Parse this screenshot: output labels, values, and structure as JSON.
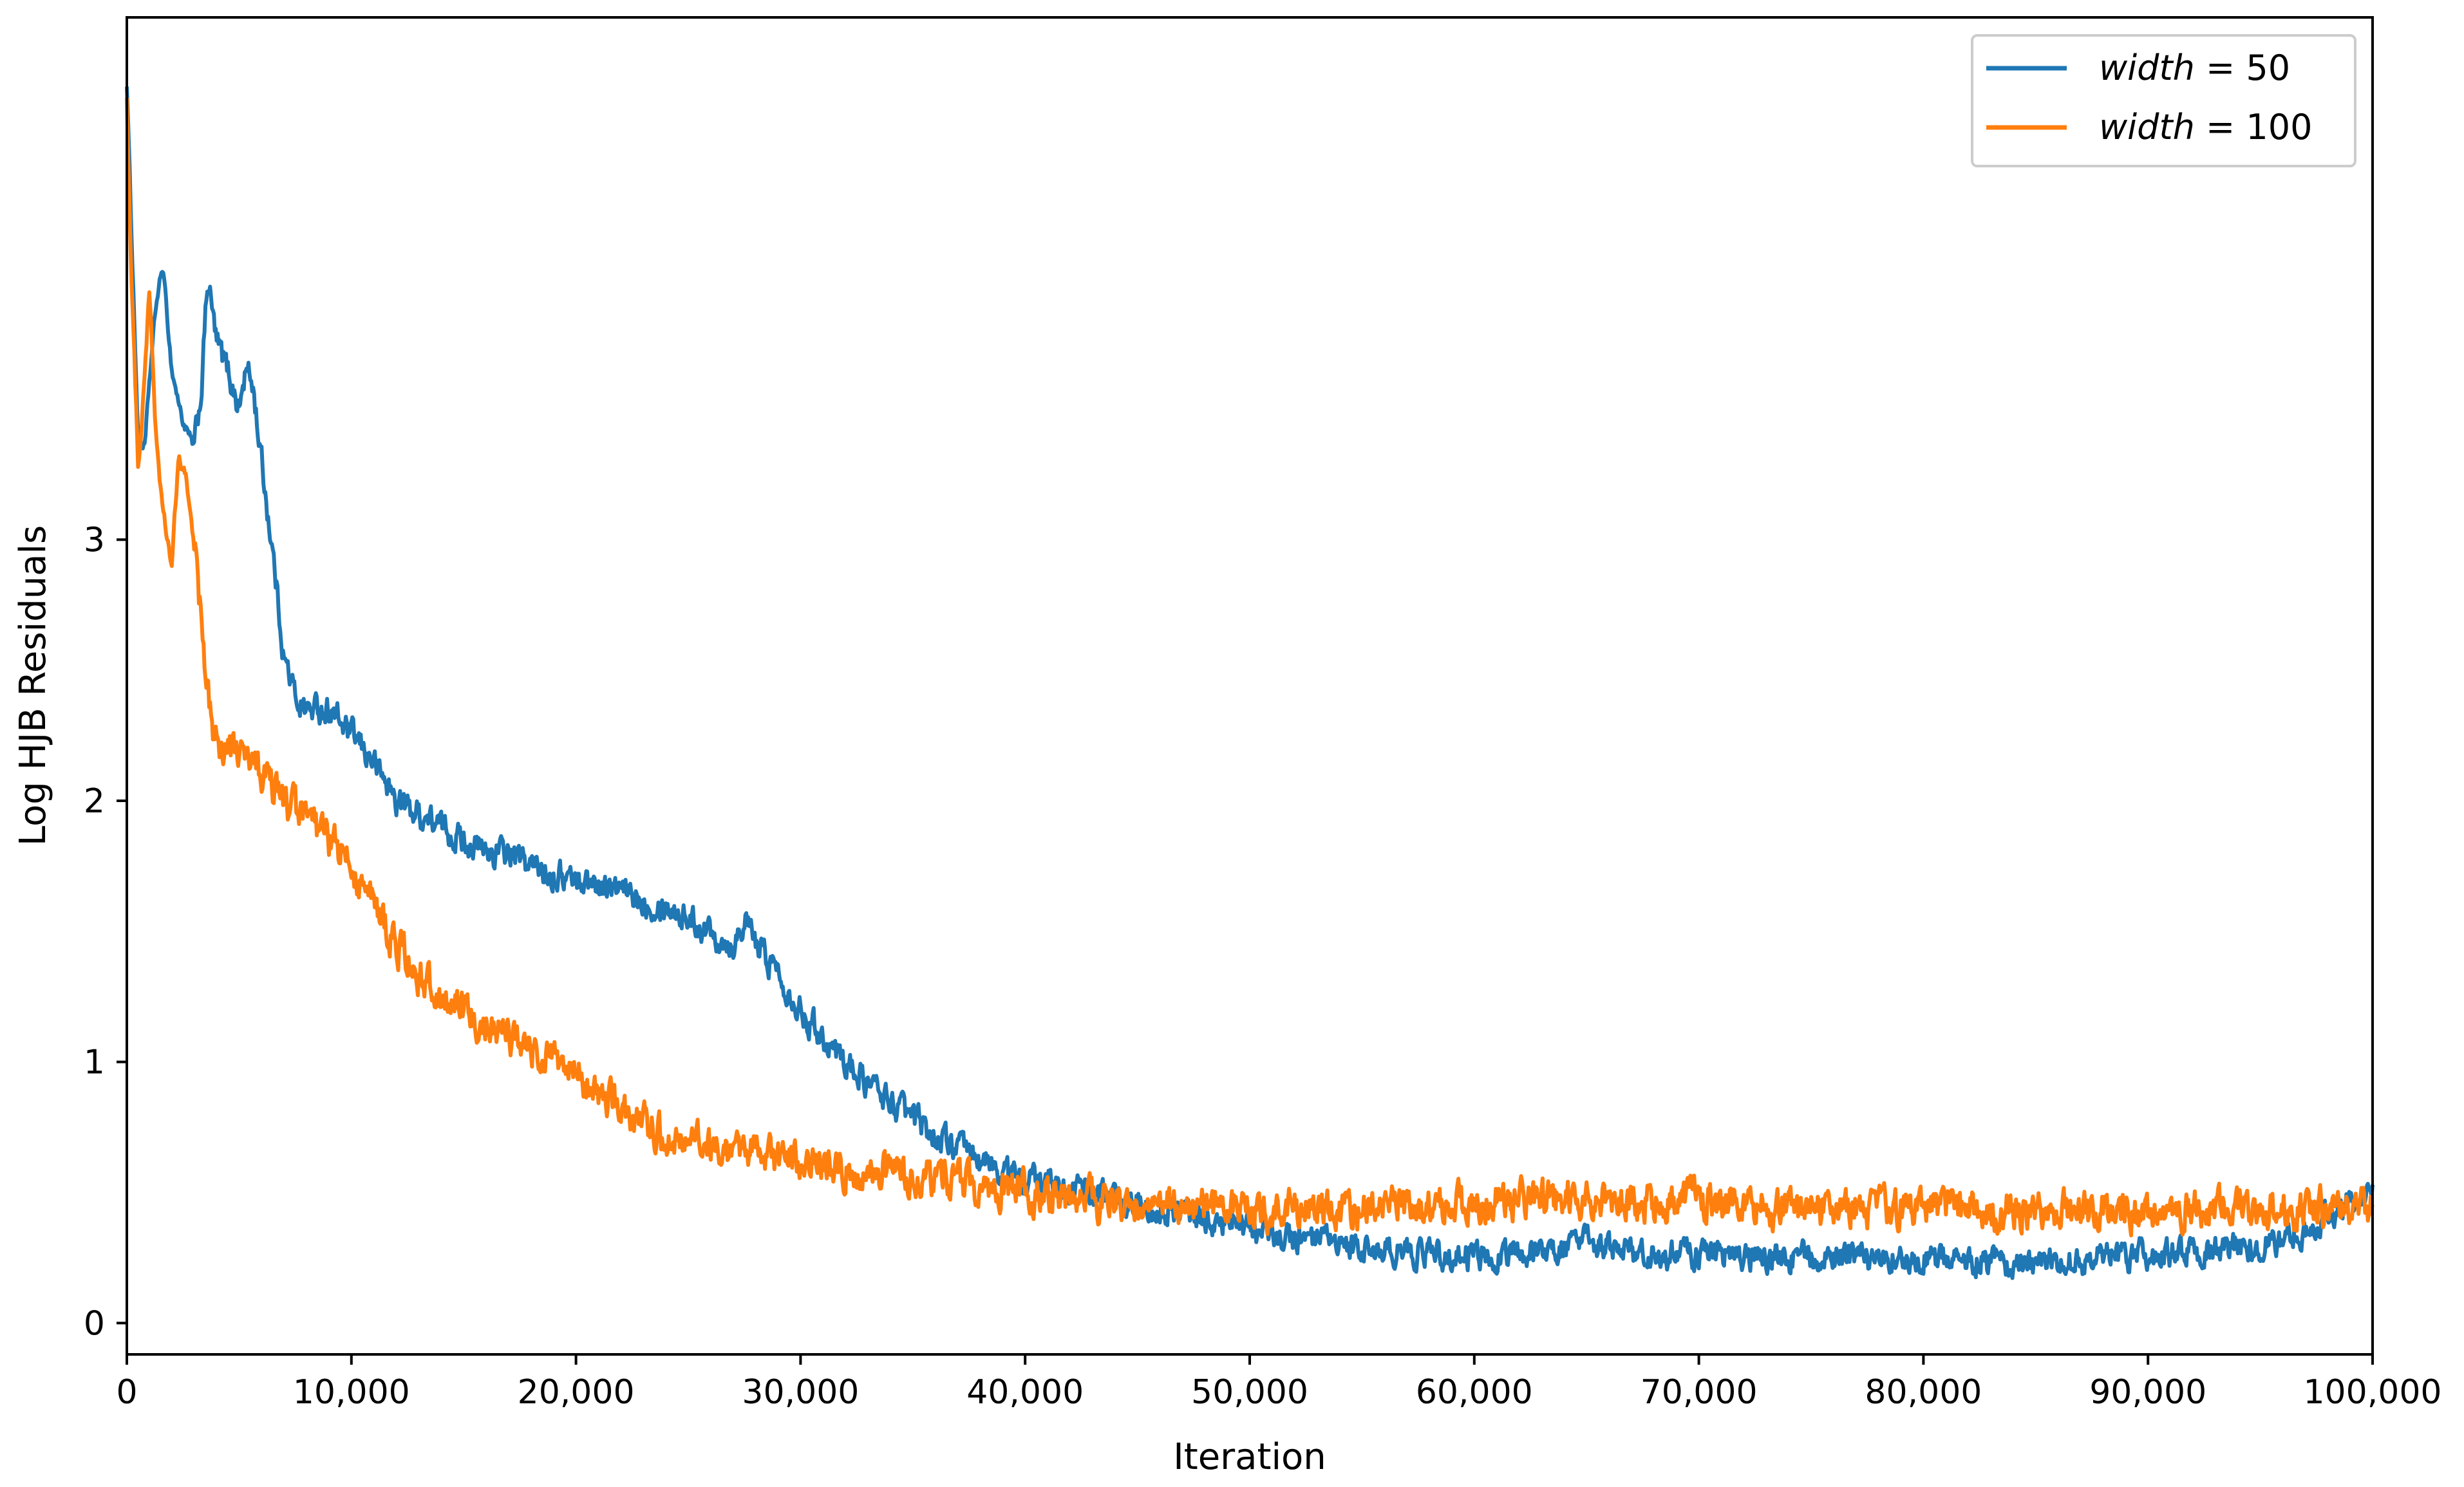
{
  "chart_data": {
    "type": "line",
    "xlabel": "Iteration",
    "ylabel": "Log HJB Residuals",
    "xlim": [
      0,
      100000
    ],
    "ylim": [
      -0.12,
      5.0
    ],
    "xticks": [
      0,
      10000,
      20000,
      30000,
      40000,
      50000,
      60000,
      70000,
      80000,
      90000,
      100000
    ],
    "xtick_labels": [
      "0",
      "10,000",
      "20,000",
      "30,000",
      "40,000",
      "50,000",
      "60,000",
      "70,000",
      "80,000",
      "90,000",
      "100,000"
    ],
    "yticks": [
      0,
      1,
      2,
      3
    ],
    "ytick_labels": [
      "0",
      "1",
      "2",
      "3"
    ],
    "grid": false,
    "legend_position": "top-right",
    "series": [
      {
        "name_italic": "width",
        "name_rest": " = 50",
        "color": "#1f77b4",
        "x": [
          0,
          200,
          500,
          800,
          1000,
          1300,
          1600,
          2000,
          2500,
          3000,
          3300,
          3600,
          4000,
          4500,
          5000,
          5300,
          5600,
          6000,
          6500,
          7000,
          7500,
          8000,
          9000,
          10000,
          11000,
          12000,
          13000,
          14000,
          15000,
          16000,
          17000,
          18000,
          19000,
          20000,
          21000,
          22000,
          23000,
          24000,
          25000,
          26000,
          27000,
          27500,
          28000,
          29000,
          30000,
          31000,
          32000,
          33000,
          34000,
          35000,
          36000,
          37000,
          38000,
          39000,
          40000,
          41000,
          42000,
          43000,
          44000,
          45000,
          46000,
          47000,
          48000,
          50000,
          52000,
          55000,
          58000,
          60000,
          62000,
          65000,
          68000,
          70000,
          72000,
          75000,
          78000,
          80000,
          82000,
          84000,
          85000,
          87000,
          90000,
          92000,
          95000,
          97000,
          98000,
          100000
        ],
        "y": [
          4.75,
          4.2,
          3.4,
          3.35,
          3.6,
          3.9,
          4.05,
          3.65,
          3.45,
          3.35,
          3.55,
          4.0,
          3.75,
          3.65,
          3.5,
          3.65,
          3.6,
          3.3,
          2.95,
          2.55,
          2.4,
          2.35,
          2.35,
          2.25,
          2.15,
          2.0,
          1.95,
          1.9,
          1.85,
          1.8,
          1.8,
          1.75,
          1.72,
          1.7,
          1.68,
          1.65,
          1.62,
          1.6,
          1.55,
          1.5,
          1.45,
          1.55,
          1.45,
          1.35,
          1.2,
          1.1,
          1.0,
          0.92,
          0.85,
          0.78,
          0.72,
          0.67,
          0.62,
          0.58,
          0.55,
          0.53,
          0.52,
          0.5,
          0.48,
          0.46,
          0.44,
          0.42,
          0.4,
          0.36,
          0.32,
          0.28,
          0.27,
          0.25,
          0.27,
          0.3,
          0.26,
          0.27,
          0.25,
          0.25,
          0.24,
          0.25,
          0.24,
          0.22,
          0.22,
          0.24,
          0.26,
          0.27,
          0.3,
          0.34,
          0.4,
          0.5
        ],
        "noise": 0.045
      },
      {
        "name_italic": "width",
        "name_rest": " = 100",
        "color": "#ff7f0e",
        "x": [
          0,
          200,
          500,
          700,
          1000,
          1300,
          1600,
          2000,
          2300,
          2600,
          3000,
          3300,
          3500,
          3800,
          4000,
          5000,
          6000,
          7000,
          8000,
          9000,
          10000,
          11000,
          12000,
          13000,
          14000,
          15000,
          16000,
          17000,
          18000,
          19000,
          20000,
          21000,
          22000,
          23000,
          24000,
          25000,
          26000,
          28000,
          30000,
          32000,
          35000,
          38000,
          40000,
          42000,
          45000,
          48000,
          50000,
          55000,
          60000,
          65000,
          70000,
          75000,
          80000,
          85000,
          90000,
          95000,
          100000
        ],
        "y": [
          4.7,
          4.0,
          3.3,
          3.5,
          3.95,
          3.4,
          3.1,
          2.9,
          3.3,
          3.25,
          3.0,
          2.7,
          2.45,
          2.3,
          2.22,
          2.18,
          2.1,
          2.0,
          1.92,
          1.85,
          1.75,
          1.6,
          1.45,
          1.33,
          1.25,
          1.18,
          1.15,
          1.1,
          1.05,
          1.0,
          0.95,
          0.88,
          0.82,
          0.77,
          0.72,
          0.7,
          0.68,
          0.64,
          0.62,
          0.59,
          0.56,
          0.52,
          0.5,
          0.47,
          0.46,
          0.45,
          0.44,
          0.44,
          0.46,
          0.48,
          0.46,
          0.44,
          0.43,
          0.43,
          0.43,
          0.44,
          0.44
        ],
        "noise": 0.06
      }
    ]
  }
}
